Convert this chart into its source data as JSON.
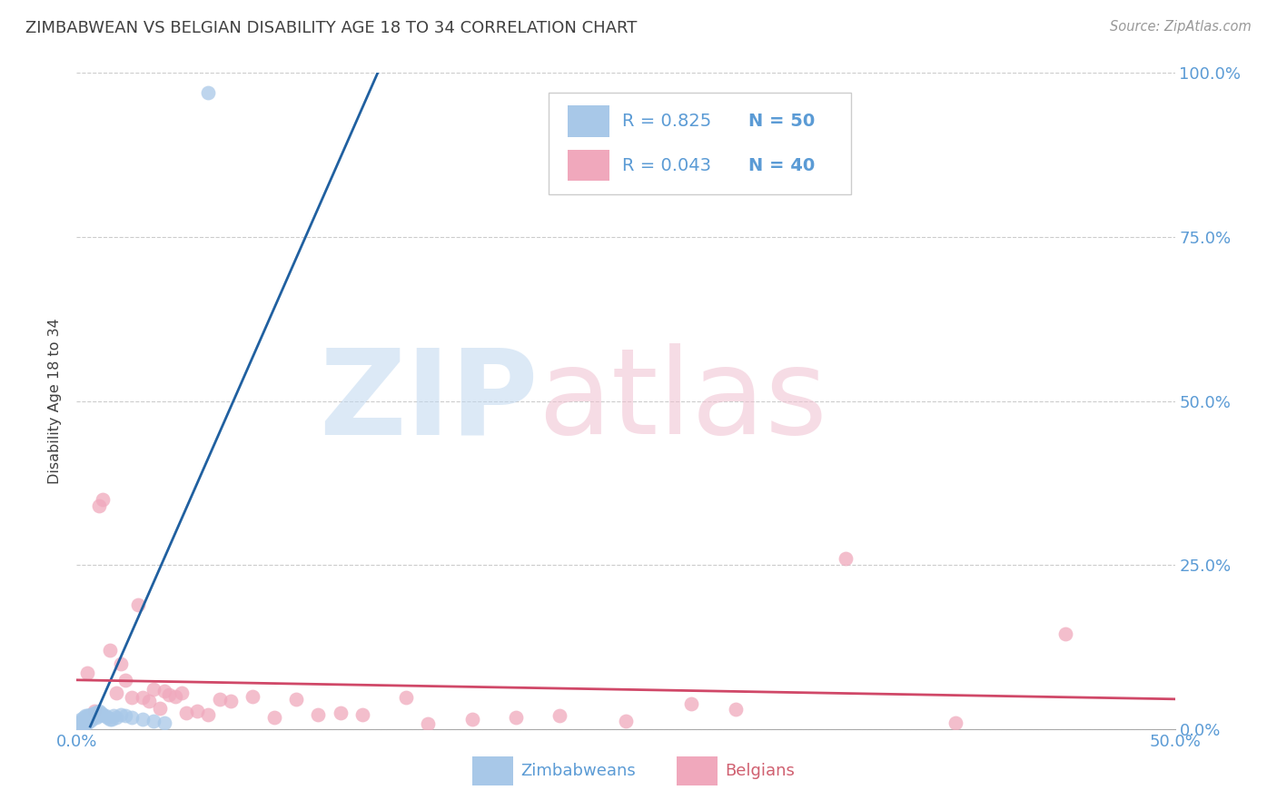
{
  "title": "ZIMBABWEAN VS BELGIAN DISABILITY AGE 18 TO 34 CORRELATION CHART",
  "source": "Source: ZipAtlas.com",
  "ylabel": "Disability Age 18 to 34",
  "xlim": [
    0.0,
    0.5
  ],
  "ylim": [
    0.0,
    1.0
  ],
  "xtick_vals": [
    0.0,
    0.1,
    0.2,
    0.3,
    0.4,
    0.5
  ],
  "xtick_labels": [
    "0.0%",
    "",
    "",
    "",
    "",
    "50.0%"
  ],
  "ytick_vals": [
    0.0,
    0.25,
    0.5,
    0.75,
    1.0
  ],
  "ytick_labels": [
    "0.0%",
    "25.0%",
    "50.0%",
    "75.0%",
    "100.0%"
  ],
  "blue_color": "#A8C8E8",
  "pink_color": "#F0A8BC",
  "blue_line_color": "#2060A0",
  "pink_line_color": "#D04868",
  "axis_label_color": "#5B9BD5",
  "text_color": "#404040",
  "grid_color": "#CCCCCC",
  "legend_R_blue": "R = 0.825",
  "legend_N_blue": "N = 50",
  "legend_R_pink": "R = 0.043",
  "legend_N_pink": "N = 40",
  "label_blue": "Zimbabweans",
  "label_pink": "Belgians",
  "blue_scatter_x": [
    0.001,
    0.001,
    0.001,
    0.001,
    0.002,
    0.002,
    0.002,
    0.002,
    0.003,
    0.003,
    0.003,
    0.003,
    0.003,
    0.004,
    0.004,
    0.004,
    0.004,
    0.005,
    0.005,
    0.005,
    0.005,
    0.005,
    0.006,
    0.006,
    0.006,
    0.006,
    0.007,
    0.007,
    0.007,
    0.008,
    0.008,
    0.009,
    0.009,
    0.01,
    0.01,
    0.011,
    0.012,
    0.013,
    0.014,
    0.015,
    0.016,
    0.017,
    0.018,
    0.02,
    0.022,
    0.025,
    0.03,
    0.035,
    0.04,
    0.06
  ],
  "blue_scatter_y": [
    0.01,
    0.008,
    0.006,
    0.004,
    0.015,
    0.012,
    0.01,
    0.008,
    0.018,
    0.015,
    0.012,
    0.01,
    0.008,
    0.02,
    0.017,
    0.015,
    0.012,
    0.02,
    0.018,
    0.015,
    0.013,
    0.01,
    0.022,
    0.018,
    0.015,
    0.012,
    0.022,
    0.018,
    0.015,
    0.025,
    0.02,
    0.025,
    0.018,
    0.028,
    0.02,
    0.025,
    0.022,
    0.02,
    0.018,
    0.015,
    0.015,
    0.02,
    0.018,
    0.022,
    0.02,
    0.018,
    0.015,
    0.012,
    0.01,
    0.97
  ],
  "pink_scatter_x": [
    0.005,
    0.008,
    0.01,
    0.012,
    0.015,
    0.018,
    0.02,
    0.022,
    0.025,
    0.028,
    0.03,
    0.033,
    0.035,
    0.038,
    0.04,
    0.042,
    0.045,
    0.048,
    0.05,
    0.055,
    0.06,
    0.065,
    0.07,
    0.08,
    0.09,
    0.1,
    0.11,
    0.12,
    0.13,
    0.15,
    0.16,
    0.18,
    0.2,
    0.22,
    0.25,
    0.28,
    0.3,
    0.35,
    0.4,
    0.45
  ],
  "pink_scatter_y": [
    0.085,
    0.028,
    0.34,
    0.35,
    0.12,
    0.055,
    0.1,
    0.075,
    0.048,
    0.19,
    0.048,
    0.042,
    0.06,
    0.032,
    0.058,
    0.052,
    0.05,
    0.055,
    0.025,
    0.028,
    0.022,
    0.045,
    0.042,
    0.05,
    0.018,
    0.045,
    0.022,
    0.025,
    0.022,
    0.048,
    0.008,
    0.015,
    0.018,
    0.02,
    0.012,
    0.038,
    0.03,
    0.26,
    0.01,
    0.145
  ],
  "blue_line_x": [
    0.0,
    0.5
  ],
  "blue_line_slope": 18.0,
  "blue_line_intercept": -0.008,
  "pink_line_slope": 0.05,
  "pink_line_intercept": 0.06
}
